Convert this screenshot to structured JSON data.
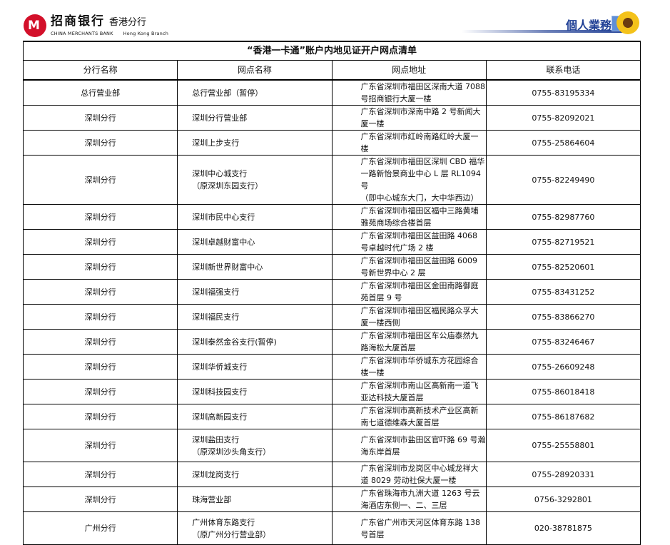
{
  "header": {
    "logo_cn": "招商银行",
    "logo_branch_cn": "香港分行",
    "logo_en": "CHINA MERCHANTS BANK",
    "logo_branch_en": "Hong Kong Branch",
    "business_label": "個人業務",
    "brand_color": "#d3102a",
    "accent_color": "#1f3f95"
  },
  "table": {
    "title": "“香港一卡通”账户内地见证开户网点清单",
    "columns": [
      "分行名称",
      "网点名称",
      "网点地址",
      "联系电话"
    ],
    "rows": [
      {
        "branch": "总行营业部",
        "outlet": [
          "总行营业部（暂停）"
        ],
        "address": [
          "广东省深圳市福田区深南大道 7088 号招商银行大厦一楼"
        ],
        "phone": "0755-83195334"
      },
      {
        "branch": "深圳分行",
        "outlet": [
          "深圳分行营业部"
        ],
        "address": [
          "广东省深圳市深南中路 2 号新闻大厦一楼"
        ],
        "phone": "0755-82092021"
      },
      {
        "branch": "深圳分行",
        "outlet": [
          "深圳上步支行"
        ],
        "address": [
          "广东省深圳市红岭南路红岭大厦一楼"
        ],
        "phone": "0755-25864604"
      },
      {
        "branch": "深圳分行",
        "outlet": [
          "深圳中心城支行",
          "（原深圳东园支行）"
        ],
        "address": [
          "广东省深圳市福田区深圳 CBD 福华一路新怡景商业中心 L 层 RL1094 号",
          "（即中心城东大门，大中华西边）"
        ],
        "phone": "0755-82249490"
      },
      {
        "branch": "深圳分行",
        "outlet": [
          "深圳市民中心支行"
        ],
        "address": [
          "广东省深圳市福田区福中三路黄埔雅苑商场综合楼首层"
        ],
        "phone": "0755-82987760"
      },
      {
        "branch": "深圳分行",
        "outlet": [
          "深圳卓越财富中心"
        ],
        "address": [
          "广东省深圳市福田区益田路 4068 号卓越时代广场 2 楼"
        ],
        "phone": "0755-82719521"
      },
      {
        "branch": "深圳分行",
        "outlet": [
          "深圳新世界财富中心"
        ],
        "address": [
          "广东省深圳市福田区益田路 6009 号新世界中心 2 层"
        ],
        "phone": "0755-82520601"
      },
      {
        "branch": "深圳分行",
        "outlet": [
          "深圳福强支行"
        ],
        "address": [
          "广东省深圳市福田区金田南路御庭苑首层 9 号"
        ],
        "phone": "0755-83431252"
      },
      {
        "branch": "深圳分行",
        "outlet": [
          "深圳福民支行"
        ],
        "address": [
          "广东省深圳市福田区福民路众孚大厦一楼西侧"
        ],
        "phone": "0755-83866270"
      },
      {
        "branch": "深圳分行",
        "outlet": [
          "深圳泰然金谷支行(暂停)"
        ],
        "address": [
          "广东省深圳市福田区车公庙泰然九路海松大厦首层"
        ],
        "phone": "0755-83246467"
      },
      {
        "branch": "深圳分行",
        "outlet": [
          "深圳华侨城支行"
        ],
        "address": [
          "广东省深圳市华侨城东方花园综合楼一楼"
        ],
        "phone": "0755-26609248"
      },
      {
        "branch": "深圳分行",
        "outlet": [
          "深圳科技园支行"
        ],
        "address": [
          "广东省深圳市南山区高新南一道飞亚达科技大厦首层"
        ],
        "phone": "0755-86018418"
      },
      {
        "branch": "深圳分行",
        "outlet": [
          "深圳高新园支行"
        ],
        "address": [
          "广东省深圳市高新技术产业区高新南七道德维森大厦首层"
        ],
        "phone": "0755-86187682"
      },
      {
        "branch": "深圳分行",
        "outlet": [
          "深圳盐田支行",
          "（原深圳沙头角支行）"
        ],
        "address": [
          "广东省深圳市盐田区官吓路 69 号瀚海东岸首层"
        ],
        "phone": "0755-25558801"
      },
      {
        "branch": "深圳分行",
        "outlet": [
          "深圳龙岗支行"
        ],
        "address": [
          "广东省深圳市龙岗区中心城龙祥大道 8029 劳动社保大厦一楼"
        ],
        "phone": "0755-28920331"
      },
      {
        "branch": "深圳分行",
        "outlet": [
          "珠海营业部"
        ],
        "address": [
          "广东省珠海市九洲大道 1263 号云海酒店东侧一、二、三层"
        ],
        "phone": "0756-3292801"
      },
      {
        "branch": "广州分行",
        "outlet": [
          "广州体育东路支行",
          "（原广州分行营业部）"
        ],
        "address": [
          "广东省广州市天河区体育东路 138 号首层"
        ],
        "phone": "020-38781875"
      }
    ]
  }
}
